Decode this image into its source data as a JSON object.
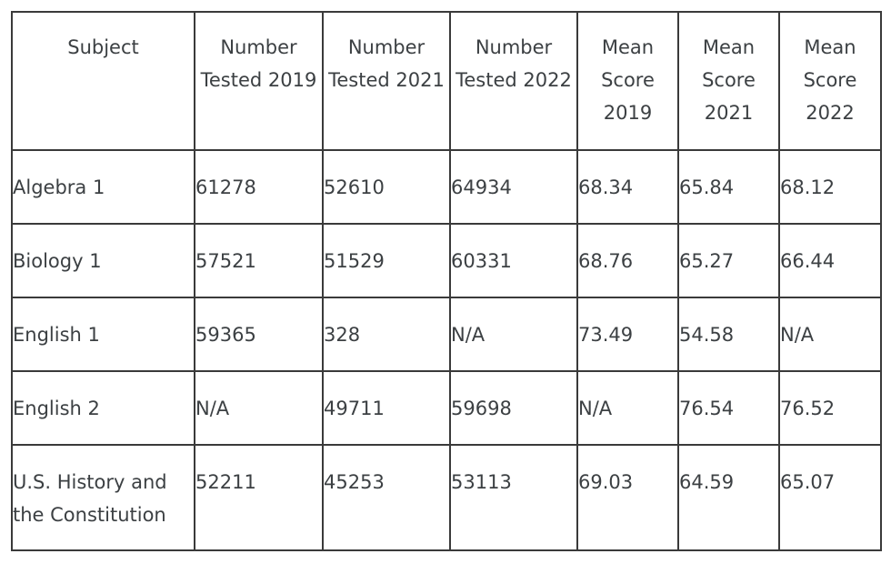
{
  "table": {
    "headers": [
      [
        "Subject"
      ],
      [
        "Number",
        "Tested 2019"
      ],
      [
        "Number",
        "Tested 2021"
      ],
      [
        "Number",
        "Tested 2022"
      ],
      [
        "Mean",
        "Score",
        "2019"
      ],
      [
        "Mean",
        "Score",
        "2021"
      ],
      [
        "Mean",
        "Score",
        "2022"
      ]
    ],
    "rows": [
      {
        "subject": "Algebra 1",
        "tested_2019": "61278",
        "tested_2021": "52610",
        "tested_2022": "64934",
        "mean_2019": "68.34",
        "mean_2021": "65.84",
        "mean_2022": "68.12"
      },
      {
        "subject": "Biology 1",
        "tested_2019": "57521",
        "tested_2021": "51529",
        "tested_2022": "60331",
        "mean_2019": "68.76",
        "mean_2021": "65.27",
        "mean_2022": "66.44"
      },
      {
        "subject": "English 1",
        "tested_2019": "59365",
        "tested_2021": "328",
        "tested_2022": "N/A",
        "mean_2019": "73.49",
        "mean_2021": "54.58",
        "mean_2022": "N/A"
      },
      {
        "subject": "English 2",
        "tested_2019": "N/A",
        "tested_2021": "49711",
        "tested_2022": "59698",
        "mean_2019": "N/A",
        "mean_2021": "76.54",
        "mean_2022": "76.52"
      },
      {
        "subject": "U.S. History and the Constitution",
        "tested_2019": "52211",
        "tested_2021": "45253",
        "tested_2022": "53113",
        "mean_2019": "69.03",
        "mean_2021": "64.59",
        "mean_2022": "65.07"
      }
    ]
  }
}
